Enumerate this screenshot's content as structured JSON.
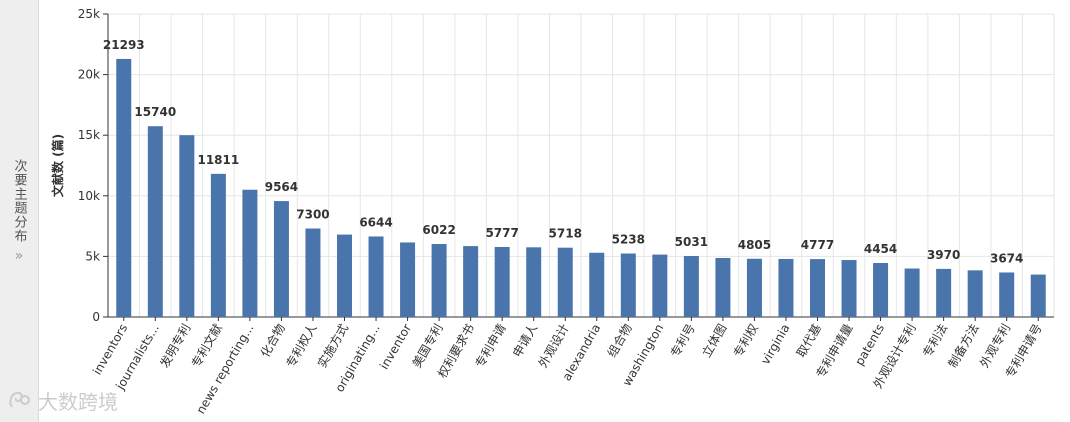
{
  "side_panel": {
    "label": "次要主题分布",
    "expand_icon": "double-chevron-right-icon"
  },
  "watermark": {
    "text": "大数跨境",
    "icon": "logo-icon"
  },
  "colors": {
    "bar": "#4a74ac",
    "grid": "#e6e6e6"
  },
  "chart_data": {
    "type": "bar",
    "ylabel": "文献数 (篇)",
    "ylim": [
      0,
      25000
    ],
    "yticks": [
      "0",
      "5k",
      "10k",
      "15k",
      "20k",
      "25k"
    ],
    "grid": true,
    "categories": [
      "inventors",
      "journalists...",
      "发明专利",
      "专利文献",
      "news reporting...",
      "化合物",
      "专利权人",
      "实施方式",
      "originating...",
      "inventor",
      "美国专利",
      "权利要求书",
      "专利申请",
      "申请人",
      "外观设计",
      "alexandria",
      "组合物",
      "washington",
      "专利号",
      "立体图",
      "专利权",
      "virginia",
      "取代基",
      "专利申请量",
      "patents",
      "外观设计专利",
      "专利法",
      "制备方法",
      "外观专利",
      "专利申请号"
    ],
    "values": [
      21293,
      15740,
      15000,
      11811,
      10500,
      9564,
      7300,
      6800,
      6644,
      6150,
      6022,
      5850,
      5777,
      5750,
      5718,
      5300,
      5238,
      5150,
      5031,
      4870,
      4805,
      4790,
      4777,
      4700,
      4454,
      4000,
      3970,
      3850,
      3674,
      3500
    ],
    "data_labels": [
      "21293",
      "15740",
      "",
      "11811",
      "",
      "9564",
      "7300",
      "",
      "6644",
      "",
      "6022",
      "",
      "5777",
      "",
      "5718",
      "",
      "5238",
      "",
      "5031",
      "",
      "4805",
      "",
      "4777",
      "",
      "4454",
      "",
      "3970",
      "",
      "3674",
      ""
    ]
  }
}
